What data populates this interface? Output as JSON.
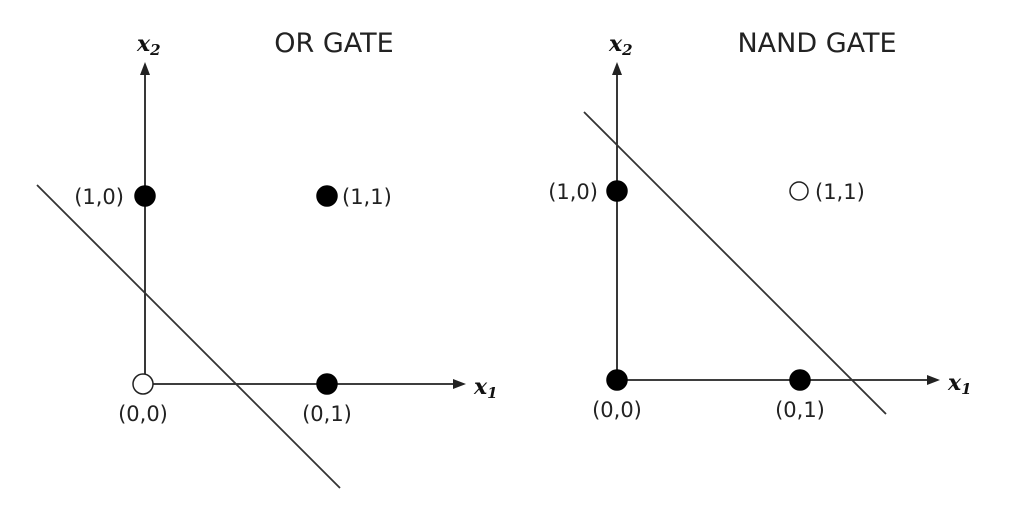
{
  "panels": [
    {
      "title": "OR GATE",
      "x_axis": {
        "var": "x",
        "sub": "1"
      },
      "y_axis": {
        "var": "x",
        "sub": "2"
      },
      "points": [
        {
          "label": "(0,0)",
          "filled": false
        },
        {
          "label": "(0,1)",
          "filled": true
        },
        {
          "label": "(1,0)",
          "filled": true
        },
        {
          "label": "(1,1)",
          "filled": true
        }
      ]
    },
    {
      "title": "NAND GATE",
      "x_axis": {
        "var": "x",
        "sub": "1"
      },
      "y_axis": {
        "var": "x",
        "sub": "2"
      },
      "points": [
        {
          "label": "(0,0)",
          "filled": true
        },
        {
          "label": "(0,1)",
          "filled": true
        },
        {
          "label": "(1,0)",
          "filled": true
        },
        {
          "label": "(1,1)",
          "filled": false
        }
      ]
    }
  ]
}
